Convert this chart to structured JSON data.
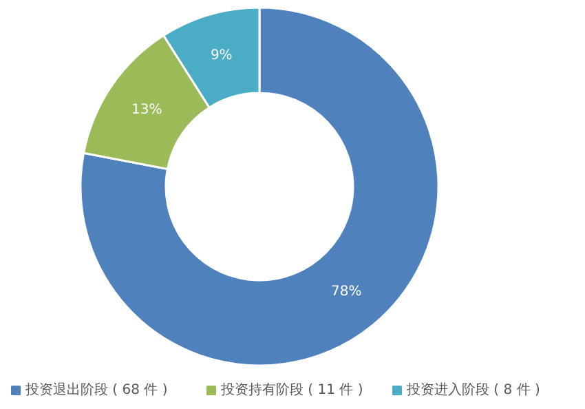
{
  "chart_data": {
    "type": "donut",
    "categories": [
      "投资退出阶段 ( 68 件 )",
      "投资持有阶段 ( 11 件 )",
      "投资进入阶段 ( 8 件 )"
    ],
    "values": [
      78,
      13,
      9
    ],
    "value_labels": [
      "78%",
      "13%",
      "9%"
    ],
    "colors": [
      "#4f81bd",
      "#9bbb59",
      "#4bacc6"
    ],
    "legend": "bottom"
  }
}
